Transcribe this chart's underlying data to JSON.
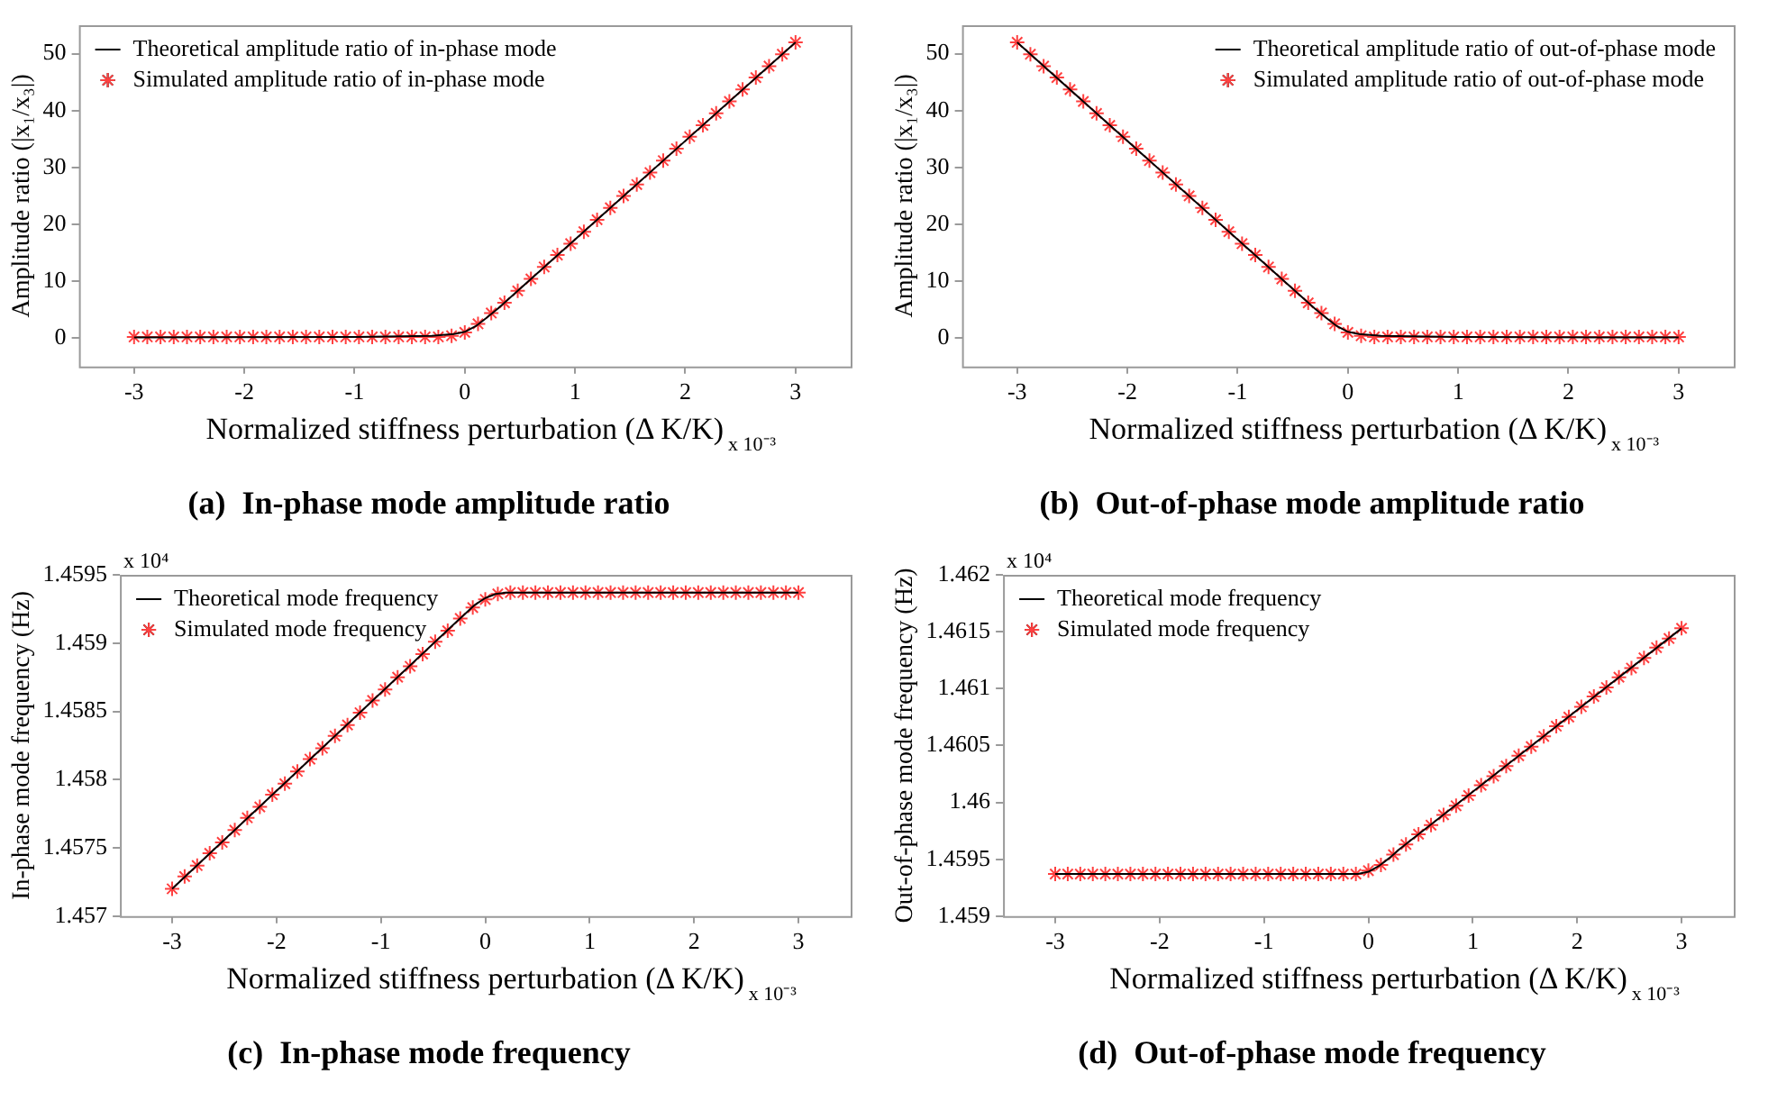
{
  "chart_data": [
    {
      "type": "scatter",
      "title": "(a)  In-phase mode amplitude ratio",
      "xlabel": "Normalized stiffness perturbation (Δ K/K)",
      "ylabel": "Amplitude ratio (|x₁/x₃|)",
      "annotations": [
        "x 10⁻³"
      ],
      "legend": "top left",
      "xlim": [
        -3.5,
        3.5
      ],
      "xticks": [
        -3,
        -2,
        -1,
        0,
        1,
        2,
        3
      ],
      "ylim": [
        -5,
        55
      ],
      "yticks": [
        0,
        10,
        20,
        30,
        40,
        50
      ],
      "series": [
        {
          "name": "Theoretical amplitude ratio of in-phase mode",
          "type": "line",
          "marker": "none",
          "color": "#000000",
          "x": [
            -3,
            -1,
            -0.3,
            -0.1,
            0,
            0.1,
            0.2,
            0.3,
            3
          ],
          "values": [
            0.1,
            0.2,
            0.4,
            0.7,
            1.1,
            2.1,
            3.6,
            5.2,
            52
          ]
        },
        {
          "name": "Simulated amplitude ratio of in-phase mode",
          "type": "scatter",
          "marker": "cross",
          "color": "#ff4040",
          "x": [
            -3,
            -2.88,
            -2.76,
            -2.64,
            -2.52,
            -2.4,
            -2.28,
            -2.16,
            -2.04,
            -1.92,
            -1.8,
            -1.68,
            -1.56,
            -1.44,
            -1.32,
            -1.2,
            -1.08,
            -0.96,
            -0.84,
            -0.72,
            -0.6,
            -0.48,
            -0.36,
            -0.24,
            -0.12,
            0,
            0.12,
            0.24,
            0.36,
            0.48,
            0.6,
            0.72,
            0.84,
            0.96,
            1.08,
            1.2,
            1.32,
            1.44,
            1.56,
            1.68,
            1.8,
            1.92,
            2.04,
            2.16,
            2.28,
            2.4,
            2.52,
            2.64,
            2.76,
            2.88,
            3
          ],
          "values": [
            0.2,
            0.2,
            0.2,
            0.2,
            0.2,
            0.2,
            0.2,
            0.2,
            0.2,
            0.2,
            0.2,
            0.2,
            0.2,
            0.2,
            0.2,
            0.2,
            0.2,
            0.2,
            0.2,
            0.2,
            0.2,
            0.2,
            0.2,
            0.2,
            0.4,
            1,
            2.5,
            4.4,
            6.2,
            8.3,
            10.4,
            12.5,
            14.6,
            16.6,
            18.7,
            20.8,
            22.9,
            25,
            27,
            29.1,
            31.2,
            33.3,
            35.4,
            37.4,
            39.5,
            41.6,
            43.7,
            45.8,
            47.8,
            49.9,
            52
          ]
        }
      ]
    },
    {
      "type": "scatter",
      "title": "(b)  Out-of-phase mode amplitude ratio",
      "xlabel": "Normalized stiffness perturbation (Δ K/K)",
      "ylabel": "Amplitude ratio (|x₁/x₃|)",
      "annotations": [
        "x 10⁻³"
      ],
      "legend": "top right",
      "xlim": [
        -3.5,
        3.5
      ],
      "xticks": [
        -3,
        -2,
        -1,
        0,
        1,
        2,
        3
      ],
      "ylim": [
        -5,
        55
      ],
      "yticks": [
        0,
        10,
        20,
        30,
        40,
        50
      ],
      "series": [
        {
          "name": "Theoretical amplitude ratio of out-of-phase mode",
          "type": "line",
          "marker": "none",
          "color": "#000000",
          "x": [
            -3,
            -0.3,
            -0.2,
            -0.1,
            0,
            0.1,
            0.3,
            1,
            3
          ],
          "values": [
            52,
            5.2,
            3.6,
            2.1,
            1.1,
            0.7,
            0.4,
            0.2,
            0.1
          ]
        },
        {
          "name": "Simulated amplitude ratio of out-of-phase mode",
          "type": "scatter",
          "marker": "cross",
          "color": "#ff4040",
          "x": [
            -3,
            -2.88,
            -2.76,
            -2.64,
            -2.52,
            -2.4,
            -2.28,
            -2.16,
            -2.04,
            -1.92,
            -1.8,
            -1.68,
            -1.56,
            -1.44,
            -1.32,
            -1.2,
            -1.08,
            -0.96,
            -0.84,
            -0.72,
            -0.6,
            -0.48,
            -0.36,
            -0.24,
            -0.12,
            0,
            0.12,
            0.24,
            0.36,
            0.48,
            0.6,
            0.72,
            0.84,
            0.96,
            1.08,
            1.2,
            1.32,
            1.44,
            1.56,
            1.68,
            1.8,
            1.92,
            2.04,
            2.16,
            2.28,
            2.4,
            2.52,
            2.64,
            2.76,
            2.88,
            3
          ],
          "values": [
            52,
            49.9,
            47.8,
            45.8,
            43.7,
            41.6,
            39.5,
            37.4,
            35.4,
            33.3,
            31.2,
            29.1,
            27,
            25,
            22.9,
            20.8,
            18.7,
            16.6,
            14.6,
            12.5,
            10.4,
            8.3,
            6.2,
            4.4,
            2.5,
            1,
            0.4,
            0.2,
            0.2,
            0.2,
            0.2,
            0.2,
            0.2,
            0.2,
            0.2,
            0.2,
            0.2,
            0.2,
            0.2,
            0.2,
            0.2,
            0.2,
            0.2,
            0.2,
            0.2,
            0.2,
            0.2,
            0.2,
            0.2,
            0.2,
            0.2
          ]
        }
      ]
    },
    {
      "type": "scatter",
      "title": "(c)  In-phase mode frequency",
      "xlabel": "Normalized stiffness perturbation (Δ K/K)",
      "ylabel": "In-phase mode frequency (Hz)",
      "annotations": [
        "x 10⁻³",
        "x 10⁴"
      ],
      "legend": "top left",
      "xlim": [
        -3.5,
        3.5
      ],
      "xticks": [
        -3,
        -2,
        -1,
        0,
        1,
        2,
        3
      ],
      "ylim": [
        1.457,
        1.4595
      ],
      "yticks": [
        1.457,
        1.4575,
        1.458,
        1.4585,
        1.459,
        1.4595
      ],
      "series": [
        {
          "name": "Theoretical mode frequency",
          "type": "line",
          "marker": "none",
          "color": "#000000",
          "x": [
            -3,
            -0.2,
            -0.1,
            0,
            0.1,
            0.2,
            3
          ],
          "values": [
            1.4572,
            1.45921,
            1.45928,
            1.45933,
            1.45936,
            1.45937,
            1.45937
          ]
        },
        {
          "name": "Simulated mode frequency",
          "type": "scatter",
          "marker": "cross",
          "color": "#ff4040",
          "x": [
            -3,
            -2.88,
            -2.76,
            -2.64,
            -2.52,
            -2.4,
            -2.28,
            -2.16,
            -2.04,
            -1.92,
            -1.8,
            -1.68,
            -1.56,
            -1.44,
            -1.32,
            -1.2,
            -1.08,
            -0.96,
            -0.84,
            -0.72,
            -0.6,
            -0.48,
            -0.36,
            -0.24,
            -0.12,
            0,
            0.12,
            0.24,
            0.36,
            0.48,
            0.6,
            0.72,
            0.84,
            0.96,
            1.08,
            1.2,
            1.32,
            1.44,
            1.56,
            1.68,
            1.8,
            1.92,
            2.04,
            2.16,
            2.28,
            2.4,
            2.52,
            2.64,
            2.76,
            2.88,
            3
          ],
          "values": [
            1.4572,
            1.45729,
            1.45737,
            1.45746,
            1.45754,
            1.45763,
            1.45772,
            1.4578,
            1.45789,
            1.45797,
            1.45806,
            1.45815,
            1.45823,
            1.45832,
            1.4584,
            1.45849,
            1.45858,
            1.45866,
            1.45875,
            1.45883,
            1.45892,
            1.45901,
            1.45909,
            1.45918,
            1.45926,
            1.45932,
            1.45936,
            1.45937,
            1.45937,
            1.45937,
            1.45937,
            1.45937,
            1.45937,
            1.45937,
            1.45937,
            1.45937,
            1.45937,
            1.45937,
            1.45937,
            1.45937,
            1.45937,
            1.45937,
            1.45937,
            1.45937,
            1.45937,
            1.45937,
            1.45937,
            1.45937,
            1.45937,
            1.45937,
            1.45937
          ]
        }
      ]
    },
    {
      "type": "scatter",
      "title": "(d)  Out-of-phase mode frequency",
      "xlabel": "Normalized stiffness perturbation (Δ K/K)",
      "ylabel": "Out-of-phase mode frequency (Hz)",
      "annotations": [
        "x 10⁻³",
        "x 10⁴"
      ],
      "legend": "top left",
      "xlim": [
        -3.5,
        3.5
      ],
      "xticks": [
        -3,
        -2,
        -1,
        0,
        1,
        2,
        3
      ],
      "ylim": [
        1.459,
        1.462
      ],
      "yticks": [
        1.459,
        1.4595,
        1.46,
        1.4605,
        1.461,
        1.4615,
        1.462
      ],
      "series": [
        {
          "name": "Theoretical mode frequency",
          "type": "line",
          "marker": "none",
          "color": "#000000",
          "x": [
            -3,
            -0.1,
            0,
            0.1,
            0.2,
            0.3,
            3
          ],
          "values": [
            1.45937,
            1.45937,
            1.45939,
            1.45944,
            1.45951,
            1.45959,
            1.46153
          ]
        },
        {
          "name": "Simulated mode frequency",
          "type": "scatter",
          "marker": "cross",
          "color": "#ff4040",
          "x": [
            -3,
            -2.88,
            -2.76,
            -2.64,
            -2.52,
            -2.4,
            -2.28,
            -2.16,
            -2.04,
            -1.92,
            -1.8,
            -1.68,
            -1.56,
            -1.44,
            -1.32,
            -1.2,
            -1.08,
            -0.96,
            -0.84,
            -0.72,
            -0.6,
            -0.48,
            -0.36,
            -0.24,
            -0.12,
            0,
            0.12,
            0.24,
            0.36,
            0.48,
            0.6,
            0.72,
            0.84,
            0.96,
            1.08,
            1.2,
            1.32,
            1.44,
            1.56,
            1.68,
            1.8,
            1.92,
            2.04,
            2.16,
            2.28,
            2.4,
            2.52,
            2.64,
            2.76,
            2.88,
            3
          ],
          "values": [
            1.45937,
            1.45937,
            1.45937,
            1.45937,
            1.45937,
            1.45937,
            1.45937,
            1.45937,
            1.45937,
            1.45937,
            1.45937,
            1.45937,
            1.45937,
            1.45937,
            1.45937,
            1.45937,
            1.45937,
            1.45937,
            1.45937,
            1.45937,
            1.45937,
            1.45937,
            1.45937,
            1.45937,
            1.45937,
            1.4594,
            1.45945,
            1.45954,
            1.45963,
            1.45972,
            1.4598,
            1.45989,
            1.45997,
            1.46006,
            1.46015,
            1.46023,
            1.46032,
            1.46041,
            1.46049,
            1.46058,
            1.46067,
            1.46075,
            1.46084,
            1.46093,
            1.46101,
            1.4611,
            1.46118,
            1.46127,
            1.46136,
            1.46144,
            1.46153
          ]
        }
      ]
    }
  ]
}
